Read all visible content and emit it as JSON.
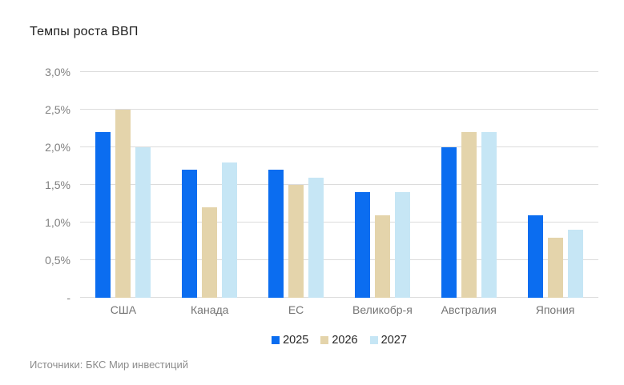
{
  "title": "Темпы роста ВВП",
  "source": "Источники: БКС Мир инвестиций",
  "colors": {
    "series_2025": "#0b6df0",
    "series_2026": "#e4d4ab",
    "series_2027": "#c6e6f5",
    "gridline": "#dcdcdc",
    "axis_text": "#808080",
    "title_text": "#212121"
  },
  "chart_data": {
    "type": "bar",
    "title": "Темпы роста ВВП",
    "categories": [
      "США",
      "Канада",
      "ЕС",
      "Великобр-я",
      "Австралия",
      "Япония"
    ],
    "series": [
      {
        "name": "2025",
        "color": "#0b6df0",
        "values": [
          2.2,
          1.7,
          1.7,
          1.4,
          2.0,
          1.1
        ]
      },
      {
        "name": "2026",
        "color": "#e4d4ab",
        "values": [
          2.5,
          1.2,
          1.5,
          1.1,
          2.2,
          0.8
        ]
      },
      {
        "name": "2027",
        "color": "#c6e6f5",
        "values": [
          2.0,
          1.8,
          1.6,
          1.4,
          2.2,
          0.9
        ]
      }
    ],
    "xlabel": "",
    "ylabel": "",
    "ylim": [
      0,
      3.0
    ],
    "ytick_step": 0.5,
    "ytick_labels": [
      "-",
      "0,5%",
      "1,0%",
      "1,5%",
      "2,0%",
      "2,5%",
      "3,0%"
    ],
    "grid": true,
    "legend_position": "bottom"
  }
}
